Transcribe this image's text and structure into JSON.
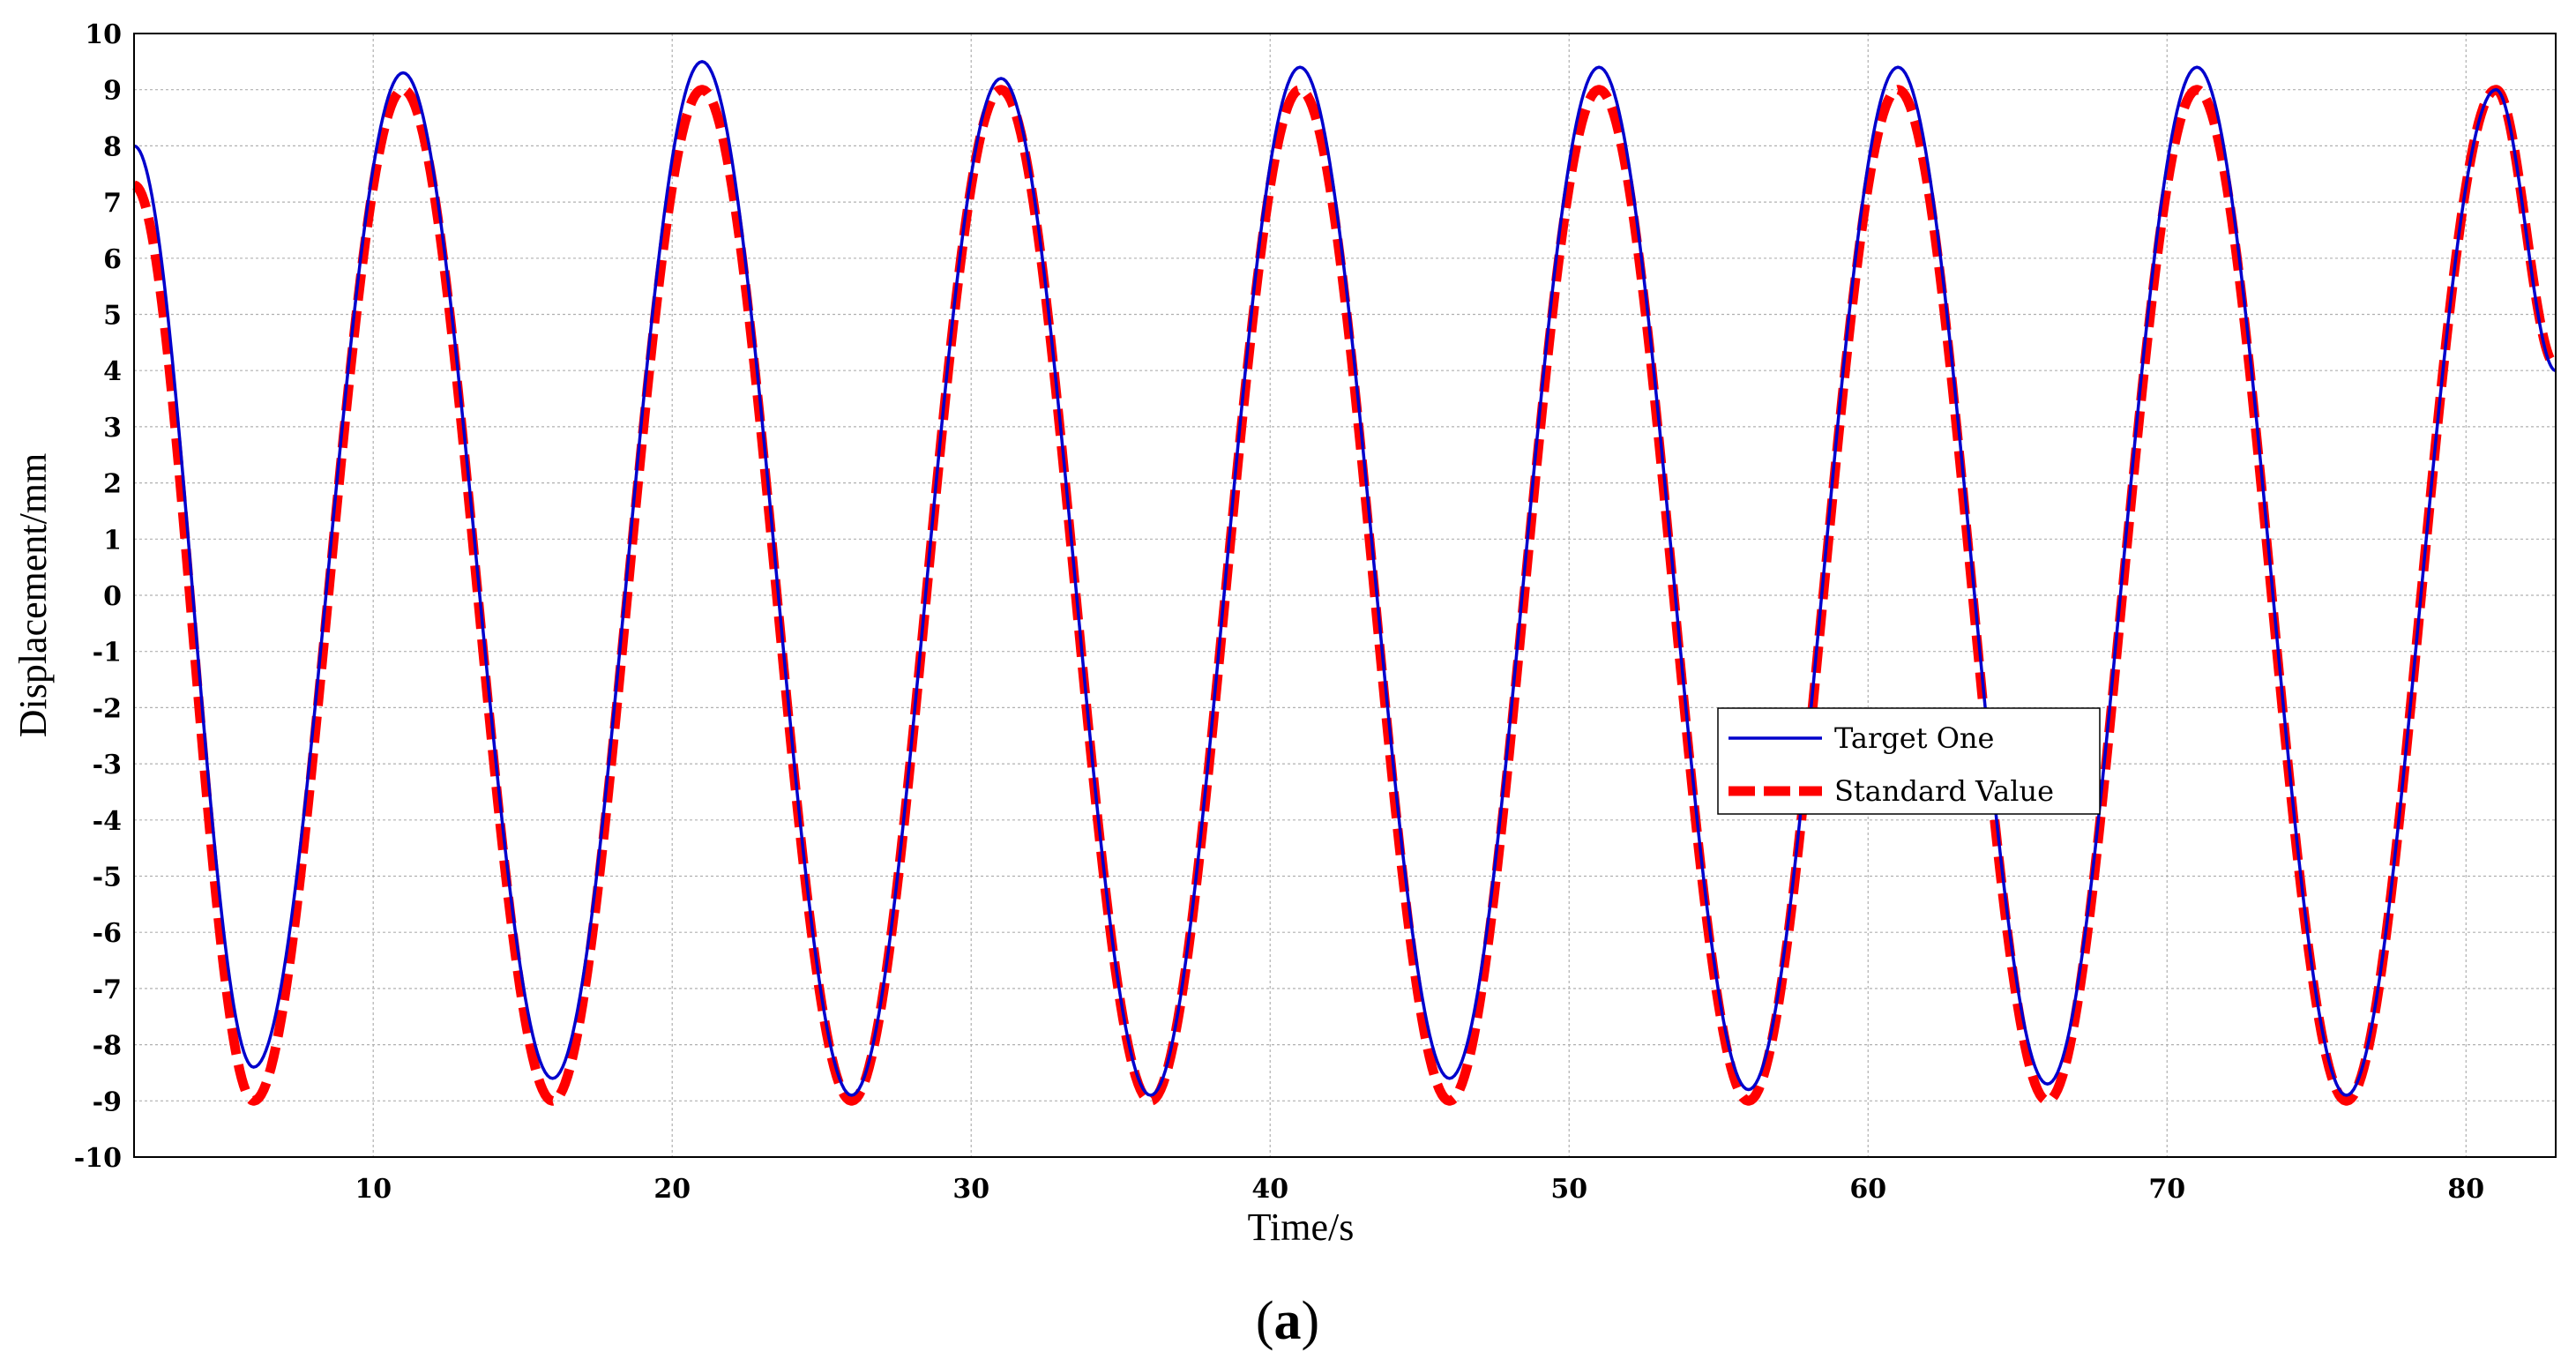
{
  "chart_data": {
    "type": "line",
    "xlabel": "Time/s",
    "ylabel": "Displacement/mm",
    "caption_text": "(a)",
    "caption_letter": "a",
    "xlim": [
      2,
      83
    ],
    "ylim": [
      -10,
      10
    ],
    "xticks": [
      10,
      20,
      30,
      40,
      50,
      60,
      70,
      80
    ],
    "yticks": [
      -10,
      -9,
      -8,
      -7,
      -6,
      -5,
      -4,
      -3,
      -2,
      -1,
      0,
      1,
      2,
      3,
      4,
      5,
      6,
      7,
      8,
      9,
      10
    ],
    "grid": true,
    "legend_position": "center-right",
    "x": [
      2,
      6,
      11,
      16,
      21,
      26,
      31,
      36,
      41,
      46,
      51,
      56,
      61,
      66,
      71,
      76,
      81,
      83
    ],
    "series": [
      {
        "name": "Target One",
        "color": "#0000cc",
        "style": "solid",
        "values": [
          8.0,
          -8.4,
          9.3,
          -8.6,
          9.5,
          -8.9,
          9.2,
          -8.9,
          9.4,
          -8.6,
          9.4,
          -8.8,
          9.4,
          -8.7,
          9.4,
          -8.9,
          9.0,
          4.0
        ]
      },
      {
        "name": "Standard Value",
        "color": "#ff0000",
        "style": "dashed",
        "values": [
          7.3,
          -9.0,
          9.0,
          -9.0,
          9.0,
          -9.0,
          9.0,
          -9.0,
          9.0,
          -9.0,
          9.0,
          -9.0,
          9.0,
          -9.0,
          9.0,
          -9.0,
          9.0,
          4.1
        ]
      }
    ]
  }
}
